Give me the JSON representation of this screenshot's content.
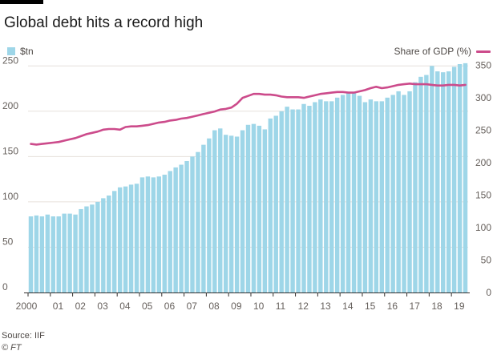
{
  "header": {
    "title": "Global debt hits a record high"
  },
  "footer": {
    "source": "Source: IIF",
    "credit": "© FT"
  },
  "colors": {
    "bars": "#9ed6e8",
    "line": "#cc4b8b",
    "axis": "#33302e",
    "grid": "#e6e0db"
  },
  "chart_data": {
    "type": "bar",
    "title": "Global debt hits a record high",
    "x_tick_labels": [
      "2000",
      "01",
      "02",
      "03",
      "04",
      "05",
      "06",
      "07",
      "08",
      "09",
      "10",
      "11",
      "12",
      "13",
      "14",
      "15",
      "16",
      "17",
      "18",
      "19"
    ],
    "x_range": [
      2000,
      2019.75
    ],
    "y_left_ticks": [
      0,
      50,
      100,
      150,
      200,
      250
    ],
    "y_left_range": [
      0,
      252
    ],
    "y_right_ticks": [
      0,
      50,
      100,
      150,
      200,
      250,
      300,
      350
    ],
    "y_right_range": [
      0,
      352
    ],
    "grid": true,
    "legend": "top",
    "series": [
      {
        "name": "$tn",
        "type": "bar",
        "axis": "left",
        "x": [
          2000.0,
          2000.25,
          2000.5,
          2000.75,
          2001.0,
          2001.25,
          2001.5,
          2001.75,
          2002.0,
          2002.25,
          2002.5,
          2002.75,
          2003.0,
          2003.25,
          2003.5,
          2003.75,
          2004.0,
          2004.25,
          2004.5,
          2004.75,
          2005.0,
          2005.25,
          2005.5,
          2005.75,
          2006.0,
          2006.25,
          2006.5,
          2006.75,
          2007.0,
          2007.25,
          2007.5,
          2007.75,
          2008.0,
          2008.25,
          2008.5,
          2008.75,
          2009.0,
          2009.25,
          2009.5,
          2009.75,
          2010.0,
          2010.25,
          2010.5,
          2010.75,
          2011.0,
          2011.25,
          2011.5,
          2011.75,
          2012.0,
          2012.25,
          2012.5,
          2012.75,
          2013.0,
          2013.25,
          2013.5,
          2013.75,
          2014.0,
          2014.25,
          2014.5,
          2014.75,
          2015.0,
          2015.25,
          2015.5,
          2015.75,
          2016.0,
          2016.25,
          2016.5,
          2016.75,
          2017.0,
          2017.25,
          2017.5,
          2017.75,
          2018.0,
          2018.25,
          2018.5,
          2018.75,
          2019.0,
          2019.25,
          2019.5
        ],
        "values": [
          84,
          85,
          84,
          86,
          84,
          84,
          87,
          87,
          86,
          92,
          95,
          97,
          100,
          104,
          107,
          112,
          116,
          117,
          119,
          120,
          127,
          128,
          127,
          128,
          130,
          134,
          138,
          141,
          145,
          150,
          155,
          163,
          170,
          179,
          181,
          174,
          173,
          172,
          179,
          185,
          186,
          184,
          180,
          192,
          195,
          200,
          205,
          202,
          202,
          208,
          206,
          210,
          213,
          211,
          211,
          215,
          218,
          220,
          221,
          217,
          210,
          213,
          211,
          211,
          215,
          218,
          222,
          218,
          222,
          232,
          238,
          240,
          250,
          244,
          243,
          244,
          249,
          252,
          253
        ]
      },
      {
        "name": "Share of GDP (%)",
        "type": "line",
        "axis": "right",
        "x": [
          2000.0,
          2000.25,
          2000.5,
          2000.75,
          2001.0,
          2001.25,
          2001.5,
          2001.75,
          2002.0,
          2002.25,
          2002.5,
          2002.75,
          2003.0,
          2003.25,
          2003.5,
          2003.75,
          2004.0,
          2004.25,
          2004.5,
          2004.75,
          2005.0,
          2005.25,
          2005.5,
          2005.75,
          2006.0,
          2006.25,
          2006.5,
          2006.75,
          2007.0,
          2007.25,
          2007.5,
          2007.75,
          2008.0,
          2008.25,
          2008.5,
          2008.75,
          2009.0,
          2009.25,
          2009.5,
          2009.75,
          2010.0,
          2010.25,
          2010.5,
          2010.75,
          2011.0,
          2011.25,
          2011.5,
          2011.75,
          2012.0,
          2012.25,
          2012.5,
          2012.75,
          2013.0,
          2013.25,
          2013.5,
          2013.75,
          2014.0,
          2014.25,
          2014.5,
          2014.75,
          2015.0,
          2015.25,
          2015.5,
          2015.75,
          2016.0,
          2016.25,
          2016.5,
          2016.75,
          2017.0,
          2017.25,
          2017.5,
          2017.75,
          2018.0,
          2018.25,
          2018.5,
          2018.75,
          2019.0,
          2019.25,
          2019.5
        ],
        "values": [
          229,
          228,
          229,
          230,
          231,
          232,
          234,
          236,
          238,
          241,
          244,
          246,
          248,
          251,
          252,
          252,
          251,
          255,
          256,
          256,
          257,
          258,
          260,
          262,
          263,
          265,
          266,
          268,
          269,
          271,
          273,
          275,
          277,
          279,
          282,
          283,
          285,
          291,
          300,
          303,
          306,
          306,
          305,
          305,
          304,
          302,
          301,
          301,
          301,
          300,
          302,
          304,
          306,
          307,
          308,
          309,
          309,
          308,
          308,
          310,
          312,
          315,
          317,
          315,
          316,
          318,
          320,
          321,
          322,
          321,
          321,
          321,
          320,
          319,
          319,
          320,
          320,
          319,
          320
        ]
      }
    ]
  }
}
